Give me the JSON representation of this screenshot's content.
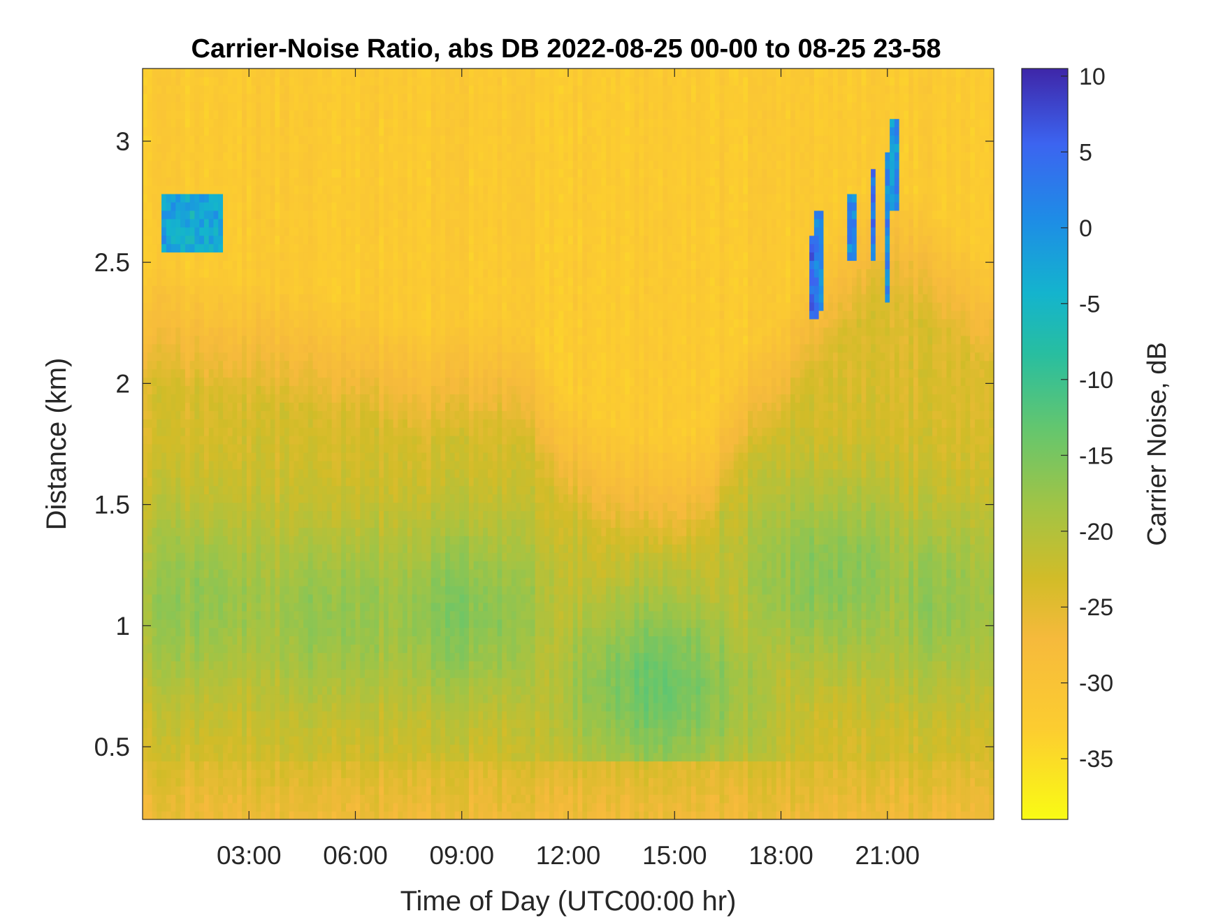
{
  "chart_data": {
    "type": "heatmap",
    "title": "Carrier-Noise Ratio, abs DB 2022-08-25 00-00 to 08-25 23-58",
    "xlabel": "Time of Day (UTC00:00 hr)",
    "ylabel": "Distance (km)",
    "colorbar_label": "Carrier Noise, dB",
    "colormap": "parula-reversed",
    "x_range_hours": [
      0,
      24
    ],
    "y_range_km": [
      0.2,
      3.3
    ],
    "c_range_db": [
      -39,
      10.5
    ],
    "x_ticks": [
      {
        "value": 3,
        "label": "03:00"
      },
      {
        "value": 6,
        "label": "06:00"
      },
      {
        "value": 9,
        "label": "09:00"
      },
      {
        "value": 12,
        "label": "12:00"
      },
      {
        "value": 15,
        "label": "15:00"
      },
      {
        "value": 18,
        "label": "18:00"
      },
      {
        "value": 21,
        "label": "21:00"
      }
    ],
    "y_ticks": [
      {
        "value": 0.5,
        "label": "0.5"
      },
      {
        "value": 1,
        "label": "1"
      },
      {
        "value": 1.5,
        "label": "1.5"
      },
      {
        "value": 2,
        "label": "2"
      },
      {
        "value": 2.5,
        "label": "2.5"
      },
      {
        "value": 3,
        "label": "3"
      }
    ],
    "c_ticks": [
      {
        "value": 10,
        "label": "10"
      },
      {
        "value": 5,
        "label": "5"
      },
      {
        "value": 0,
        "label": "0"
      },
      {
        "value": -5,
        "label": "-5"
      },
      {
        "value": -10,
        "label": "-10"
      },
      {
        "value": -15,
        "label": "-15"
      },
      {
        "value": -20,
        "label": "-20"
      },
      {
        "value": -25,
        "label": "-25"
      },
      {
        "value": -30,
        "label": "-30"
      },
      {
        "value": -35,
        "label": "-35"
      }
    ],
    "background_db": -32,
    "features": [
      {
        "kind": "boundary_layer_top_km",
        "time_h": [
          0.3,
          2,
          4,
          6,
          8,
          10,
          11,
          12,
          13,
          14,
          15,
          16,
          16.8,
          17.5,
          18,
          19,
          20,
          21,
          22,
          23.9
        ],
        "height_km": [
          2.35,
          2.3,
          2.25,
          2.2,
          2.1,
          2.15,
          2.05,
          1.8,
          1.7,
          1.65,
          1.62,
          1.68,
          2.0,
          2.05,
          2.15,
          2.4,
          2.6,
          2.75,
          2.6,
          2.4
        ]
      },
      {
        "kind": "moist_core",
        "time_h": 1.5,
        "height_km": 1.1,
        "peak_db": -17
      },
      {
        "kind": "moist_core",
        "time_h": 5.5,
        "height_km": 1.05,
        "peak_db": -17
      },
      {
        "kind": "moist_core",
        "time_h": 9.0,
        "height_km": 1.05,
        "peak_db": -16
      },
      {
        "kind": "moist_core",
        "time_h": 14.5,
        "height_km": 0.75,
        "peak_db": -14
      },
      {
        "kind": "moist_core",
        "time_h": 19.5,
        "height_km": 1.2,
        "peak_db": -16
      },
      {
        "kind": "moist_core",
        "time_h": 22.5,
        "height_km": 1.1,
        "peak_db": -17
      },
      {
        "kind": "cloud_layer",
        "time_start_h": 0.6,
        "time_end_h": 2.3,
        "height_bottom_km": 2.55,
        "height_top_km": 2.8,
        "peak_db": 0
      },
      {
        "kind": "cloud_column",
        "time_h": 18.9,
        "height_bottom_km": 2.25,
        "height_top_km": 2.6,
        "peak_db": 7
      },
      {
        "kind": "cloud_column",
        "time_h": 19.1,
        "height_bottom_km": 2.3,
        "height_top_km": 2.7,
        "peak_db": 5
      },
      {
        "kind": "cloud_column",
        "time_h": 20.0,
        "height_bottom_km": 2.5,
        "height_top_km": 2.8,
        "peak_db": 5
      },
      {
        "kind": "cloud_column",
        "time_h": 20.6,
        "height_bottom_km": 2.5,
        "height_top_km": 2.9,
        "peak_db": 6
      },
      {
        "kind": "cloud_column",
        "time_h": 21.0,
        "height_bottom_km": 2.35,
        "height_top_km": 2.95,
        "peak_db": 4
      },
      {
        "kind": "cloud_column",
        "time_h": 21.2,
        "height_bottom_km": 2.7,
        "height_top_km": 3.1,
        "peak_db": 3
      }
    ]
  }
}
